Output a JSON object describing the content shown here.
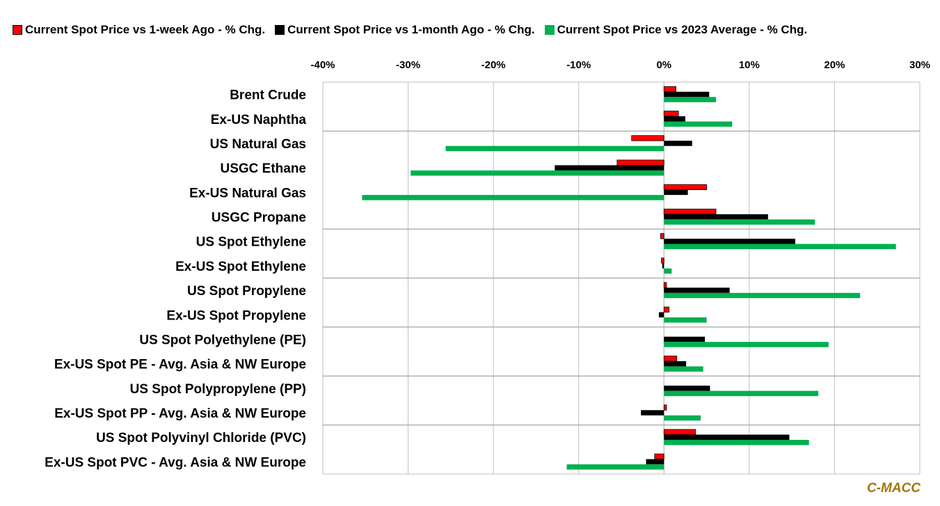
{
  "colors": {
    "week": "#ff0000",
    "month": "#000000",
    "avg2023": "#00b050",
    "grid": "#bfbfbf",
    "credit": "#a0770c"
  },
  "legend": [
    {
      "name": "Current Spot Price vs 1-week Ago - % Chg.",
      "color": "#ff0000"
    },
    {
      "name": "Current Spot Price vs 1-month Ago - % Chg.",
      "color": "#000000"
    },
    {
      "name": "Current Spot Price vs 2023 Average - % Chg.",
      "color": "#00b050"
    }
  ],
  "credit": "C-MACC",
  "chart_data": {
    "type": "bar",
    "orientation": "horizontal",
    "title": "",
    "xlabel": "",
    "ylabel": "",
    "xlim": [
      -40,
      30
    ],
    "x_ticks": [
      -40,
      -30,
      -20,
      -10,
      0,
      10,
      20,
      30
    ],
    "x_tick_labels": [
      "-40%",
      "-30%",
      "-20%",
      "-10%",
      "0%",
      "10%",
      "20%",
      "30%"
    ],
    "x_axis_position": "top",
    "grid": "vertical",
    "legend_position": "top",
    "categories": [
      "Brent Crude",
      "Ex-US Naphtha",
      "US Natural Gas",
      "USGC Ethane",
      "Ex-US Natural Gas",
      "USGC Propane",
      "US Spot Ethylene",
      "Ex-US Spot Ethylene",
      "US Spot Propylene",
      "Ex-US Spot Propylene",
      "US Spot Polyethylene (PE)",
      "Ex-US Spot PE - Avg. Asia & NW Europe",
      "US Spot Polypropylene (PP)",
      "Ex-US Spot PP - Avg. Asia & NW Europe",
      "US Spot Polyvinyl Chloride (PVC)",
      "Ex-US Spot PVC - Avg. Asia & NW Europe"
    ],
    "group_separators_after": [
      1,
      5,
      7,
      9,
      11,
      13
    ],
    "series": [
      {
        "name": "Current Spot Price vs 1-week Ago - % Chg.",
        "color": "#ff0000",
        "values": [
          1.4,
          1.7,
          -3.8,
          -5.5,
          5.0,
          6.1,
          -0.4,
          -0.3,
          0.3,
          0.6,
          0.0,
          1.5,
          0.0,
          0.3,
          3.7,
          -1.1
        ]
      },
      {
        "name": "Current Spot Price vs 1-month Ago - % Chg.",
        "color": "#000000",
        "values": [
          5.3,
          2.5,
          3.3,
          -12.8,
          2.8,
          12.2,
          15.4,
          -0.2,
          7.7,
          -0.6,
          4.8,
          2.6,
          5.4,
          -2.7,
          14.7,
          -2.1
        ]
      },
      {
        "name": "Current Spot Price vs 2023 Average - % Chg.",
        "color": "#00b050",
        "values": [
          6.1,
          8.0,
          -25.6,
          -29.7,
          -35.4,
          17.7,
          27.2,
          0.9,
          23.0,
          5.0,
          19.3,
          4.6,
          18.1,
          4.3,
          17.0,
          -11.4
        ]
      }
    ]
  }
}
